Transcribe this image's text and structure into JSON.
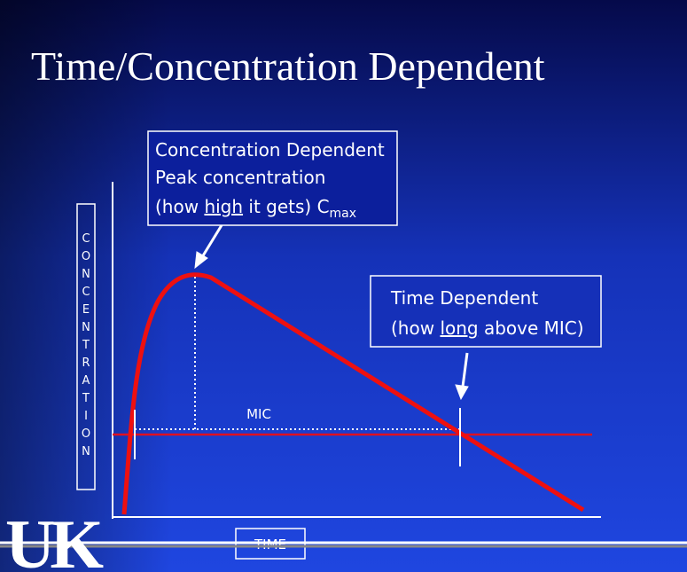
{
  "title": "Time/Concentration Dependent",
  "concentration_box": {
    "lines": [
      "Concentration Dependent",
      "Peak concentration"
    ],
    "last_line": {
      "before": "(how ",
      "underlined": "high",
      "after": " it gets) C",
      "subscript": "max"
    }
  },
  "time_box": {
    "line": "Time Dependent",
    "last_line": {
      "before": "(how ",
      "underlined": "long",
      "after": " above MIC)"
    }
  },
  "mic_label": "MIC",
  "y_axis_label": "CONCENTRATION",
  "x_axis_label": "TIME",
  "logo": "UK"
}
